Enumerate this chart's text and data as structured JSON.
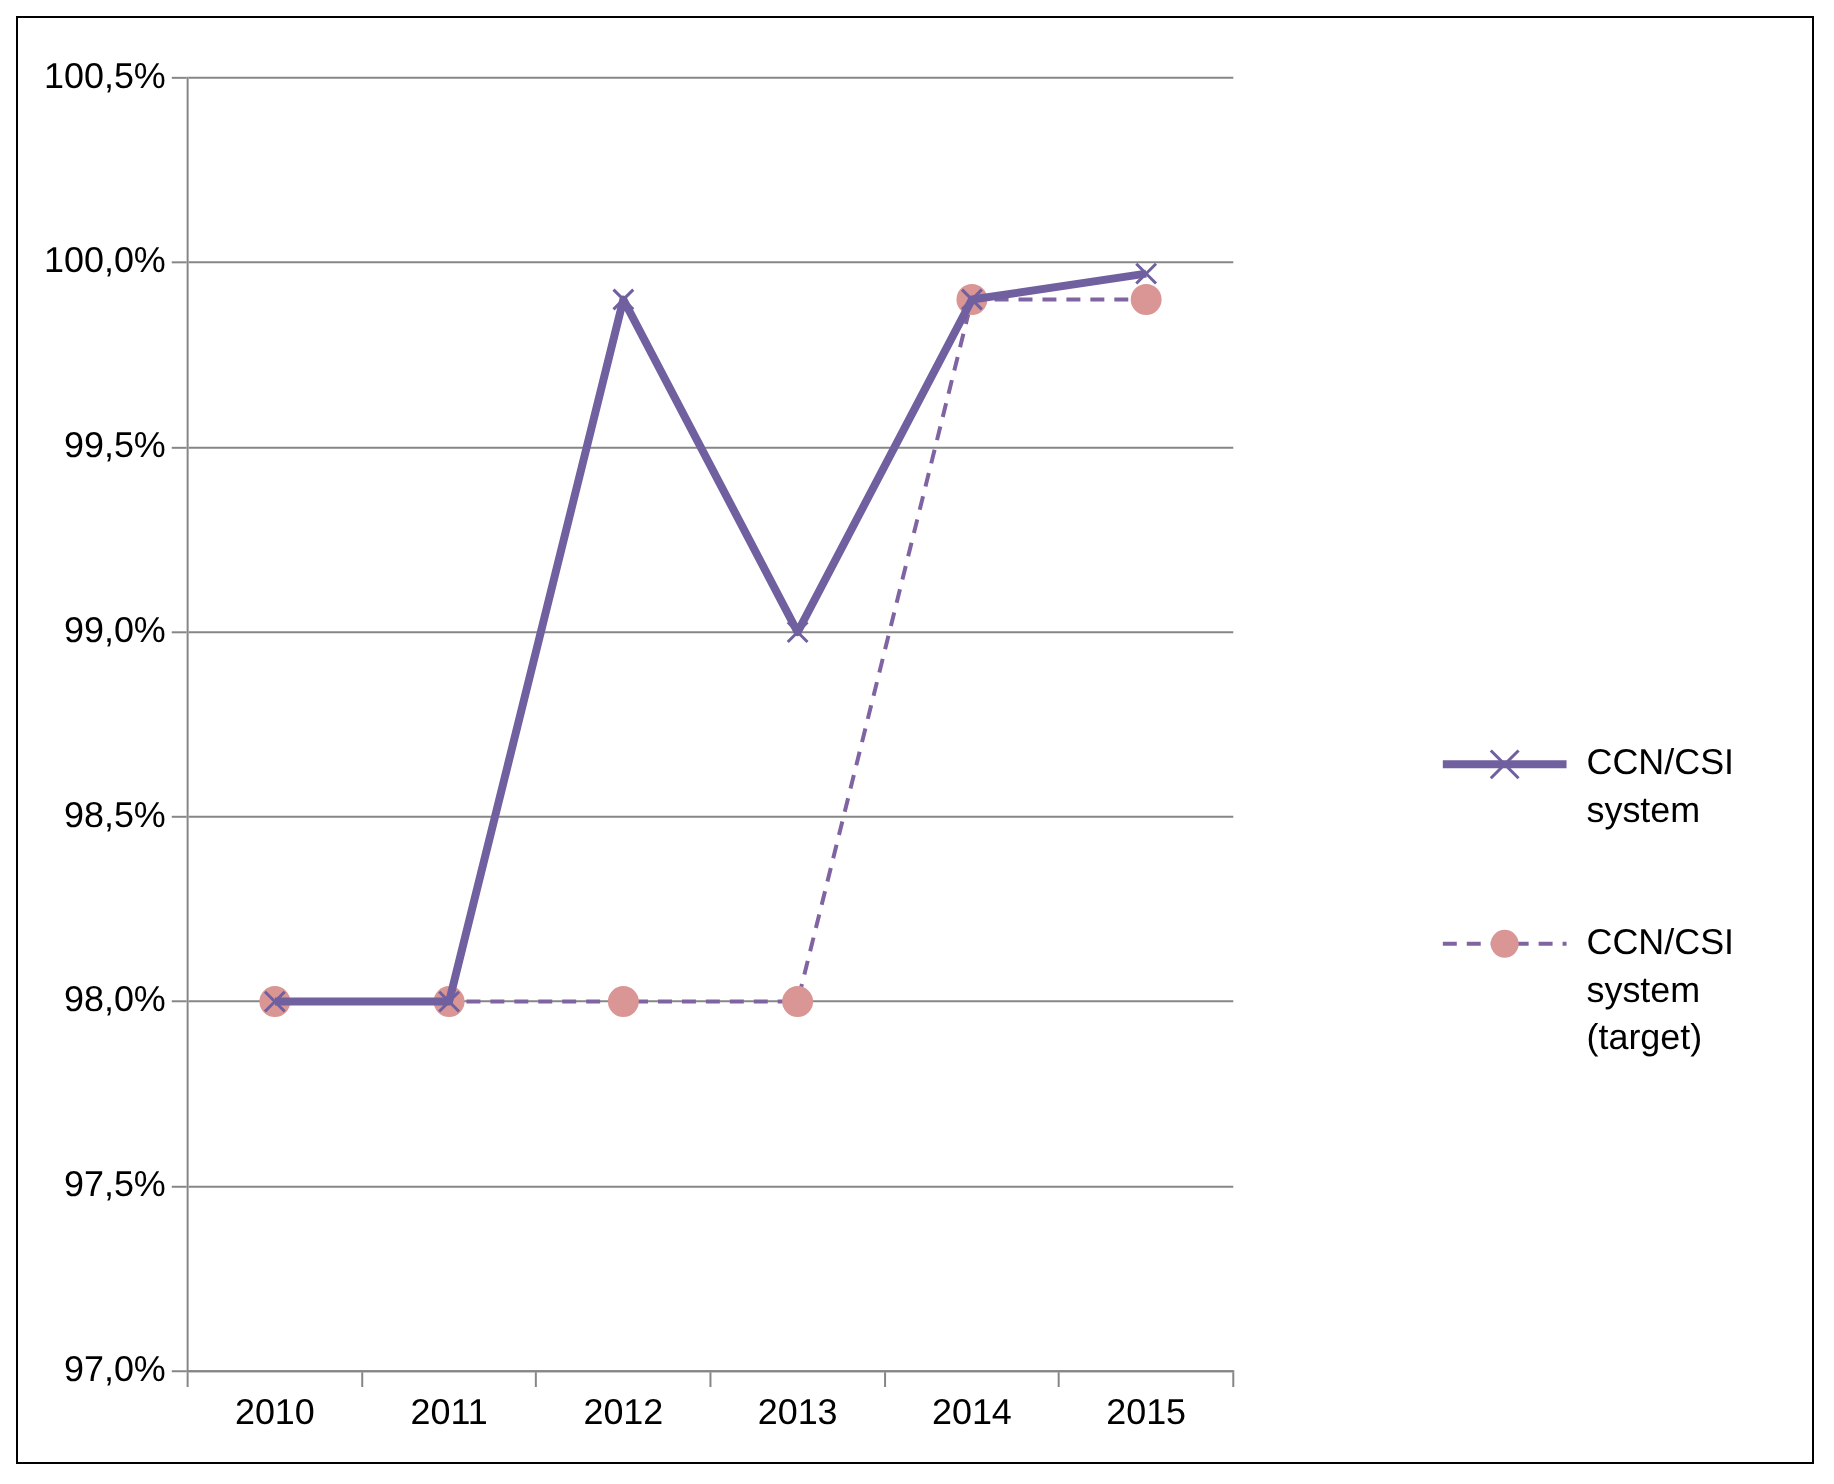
{
  "chart_data": {
    "type": "line",
    "categories": [
      "2010",
      "2011",
      "2012",
      "2013",
      "2014",
      "2015"
    ],
    "series": [
      {
        "name": "CCN/CSI system",
        "color": "#7060a0",
        "values": [
          98.0,
          98.0,
          99.9,
          99.0,
          99.9,
          99.97
        ],
        "marker": "cross",
        "line_style": "solid"
      },
      {
        "name": "CCN/CSI system (target)",
        "color": "#8064a2",
        "colors": [
          "#d99694",
          "#d99694",
          "#d99694",
          "#d99694",
          "#d99694",
          "#d99694"
        ],
        "values": [
          98.0,
          98.0,
          98.0,
          98.0,
          99.9,
          99.9
        ],
        "marker": "circle",
        "line_style": "dashed"
      }
    ],
    "ylim": [
      97.0,
      100.5
    ],
    "yticks": [
      {
        "value": 97.0,
        "label": "97,0%"
      },
      {
        "value": 97.5,
        "label": "97,5%"
      },
      {
        "value": 98.0,
        "label": "98,0%"
      },
      {
        "value": 98.5,
        "label": "98,5%"
      },
      {
        "value": 99.0,
        "label": "99,0%"
      },
      {
        "value": 99.5,
        "label": "99,5%"
      },
      {
        "value": 100.0,
        "label": "100,0%"
      },
      {
        "value": 100.5,
        "label": "100,5%"
      }
    ],
    "grid": "y",
    "legend": "right"
  }
}
